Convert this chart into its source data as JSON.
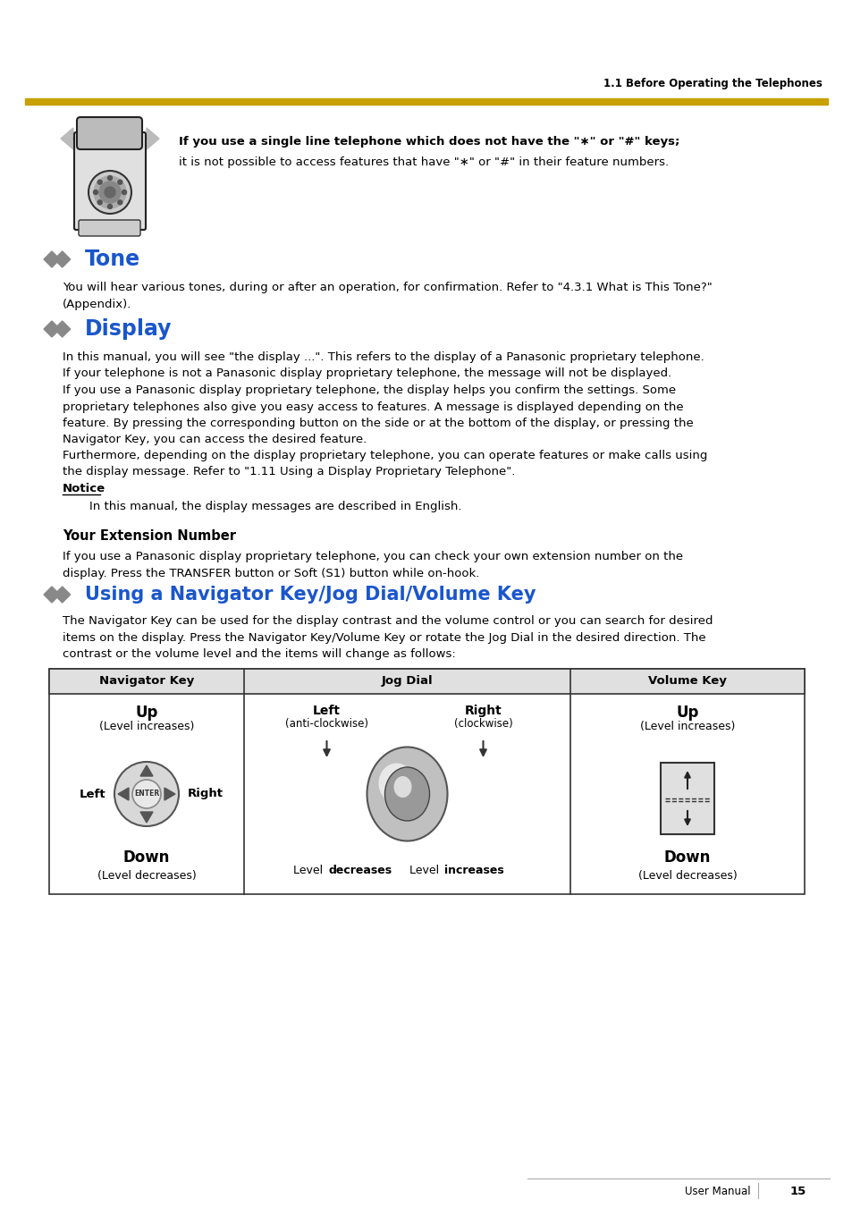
{
  "bg_color": "#ffffff",
  "header_text": "1.1 Before Operating the Telephones",
  "page_number": "15",
  "user_manual_text": "User Manual",
  "notice_box_bold_text": "If you use a single line telephone which does not have the \"∗\" or \"#\" keys;",
  "notice_box_normal_text": "it is not possible to access features that have \"∗\" or \"#\" in their feature numbers.",
  "tone_title": "Tone",
  "tone_text": "You will hear various tones, during or after an operation, for confirmation. Refer to \"4.3.1 What is This Tone?\"\n(Appendix).",
  "display_title": "Display",
  "display_text1": "In this manual, you will see \"the display ...\". This refers to the display of a Panasonic proprietary telephone.\nIf your telephone is not a Panasonic display proprietary telephone, the message will not be displayed.\nIf you use a Panasonic display proprietary telephone, the display helps you confirm the settings. Some\nproprietary telephones also give you easy access to features. A message is displayed depending on the\nfeature. By pressing the corresponding button on the side or at the bottom of the display, or pressing the\nNavigator Key, you can access the desired feature.",
  "display_text2": "Furthermore, depending on the display proprietary telephone, you can operate features or make calls using\nthe display message. Refer to \"1.11 Using a Display Proprietary Telephone\".",
  "notice_label": "Notice",
  "notice_text": "In this manual, the display messages are described in English.",
  "ext_num_title": "Your Extension Number",
  "ext_num_text": "If you use a Panasonic display proprietary telephone, you can check your own extension number on the\ndisplay. Press the TRANSFER button or Soft (S1) button while on-hook.",
  "nav_title": "Using a Navigator Key/Jog Dial/Volume Key",
  "nav_text": "The Navigator Key can be used for the display contrast and the volume control or you can search for desired\nitems on the display. Press the Navigator Key/Volume Key or rotate the Jog Dial in the desired direction. The\ncontrast or the volume level and the items will change as follows:",
  "table_col1": "Navigator Key",
  "table_col2": "Jog Dial",
  "table_col3": "Volume Key",
  "nav_up": "Up",
  "nav_up_sub": "(Level increases)",
  "nav_left": "Left",
  "nav_right": "Right",
  "nav_down": "Down",
  "nav_down_sub": "(Level decreases)",
  "jog_left": "Left",
  "jog_left_sub": "(anti-clockwise)",
  "jog_right": "Right",
  "jog_right_sub": "(clockwise)",
  "jog_dec_normal": "Level ",
  "jog_dec_bold": "decreases",
  "jog_inc_normal": "Level ",
  "jog_inc_bold": "increases",
  "vol_up": "Up",
  "vol_up_sub": "(Level increases)",
  "vol_down": "Down",
  "vol_down_sub": "(Level decreases)",
  "blue_color": "#1a56cc",
  "gold_color": "#c8a000",
  "text_color": "#000000",
  "header_color": "#000000",
  "table_header_bg": "#e0e0e0"
}
